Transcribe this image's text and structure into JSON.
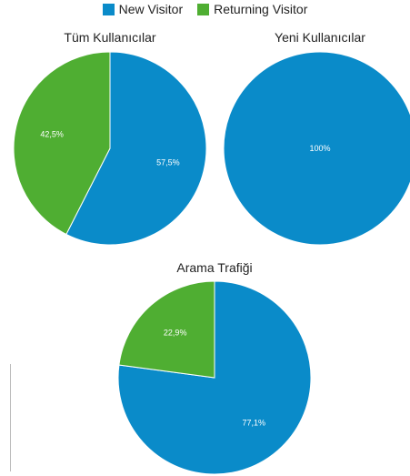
{
  "legend": [
    {
      "name": "New Visitor",
      "color": "#0a8bc9"
    },
    {
      "name": "Returning Visitor",
      "color": "#4fae32"
    }
  ],
  "chart_data": [
    {
      "type": "pie",
      "title": "Tüm Kullanıcılar",
      "slices": [
        {
          "name": "New Visitor",
          "value": 57.5,
          "label": "57,5%",
          "color": "#0a8bc9"
        },
        {
          "name": "Returning Visitor",
          "value": 42.5,
          "label": "42,5%",
          "color": "#4fae32"
        }
      ]
    },
    {
      "type": "pie",
      "title": "Yeni Kullanıcılar",
      "slices": [
        {
          "name": "New Visitor",
          "value": 100,
          "label": "100%",
          "color": "#0a8bc9"
        }
      ]
    },
    {
      "type": "pie",
      "title": "Arama Trafiği",
      "slices": [
        {
          "name": "New Visitor",
          "value": 77.1,
          "label": "77,1%",
          "color": "#0a8bc9"
        },
        {
          "name": "Returning Visitor",
          "value": 22.9,
          "label": "22,9%",
          "color": "#4fae32"
        }
      ]
    }
  ]
}
